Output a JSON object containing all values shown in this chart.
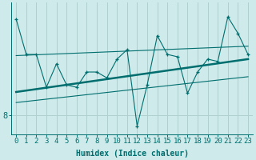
{
  "xlabel": "Humidex (Indice chaleur)",
  "background_color": "#ceeaea",
  "line_color": "#006e6e",
  "grid_color": "#b0cfcf",
  "xlim": [
    -0.5,
    23.5
  ],
  "ylim": [
    7.2,
    12.8
  ],
  "ytick_values": [
    8
  ],
  "ytick_labels": [
    "8"
  ],
  "x_data": [
    0,
    1,
    2,
    3,
    4,
    5,
    6,
    7,
    8,
    9,
    10,
    11,
    12,
    13,
    14,
    15,
    16,
    17,
    18,
    19,
    20,
    21,
    22,
    23
  ],
  "y_jagged": [
    12.1,
    10.6,
    10.6,
    9.2,
    10.2,
    9.3,
    9.2,
    9.85,
    9.85,
    9.6,
    10.4,
    10.8,
    7.55,
    9.3,
    11.4,
    10.6,
    10.5,
    8.95,
    9.85,
    10.4,
    10.3,
    12.2,
    11.5,
    10.6
  ],
  "trend_y_start": 9.0,
  "trend_y_end": 10.4,
  "upper_y_start": 10.55,
  "upper_y_end": 10.95,
  "lower_y_start": 8.55,
  "lower_y_end": 9.65,
  "fontsize_label": 7,
  "fontsize_tick": 6.5
}
